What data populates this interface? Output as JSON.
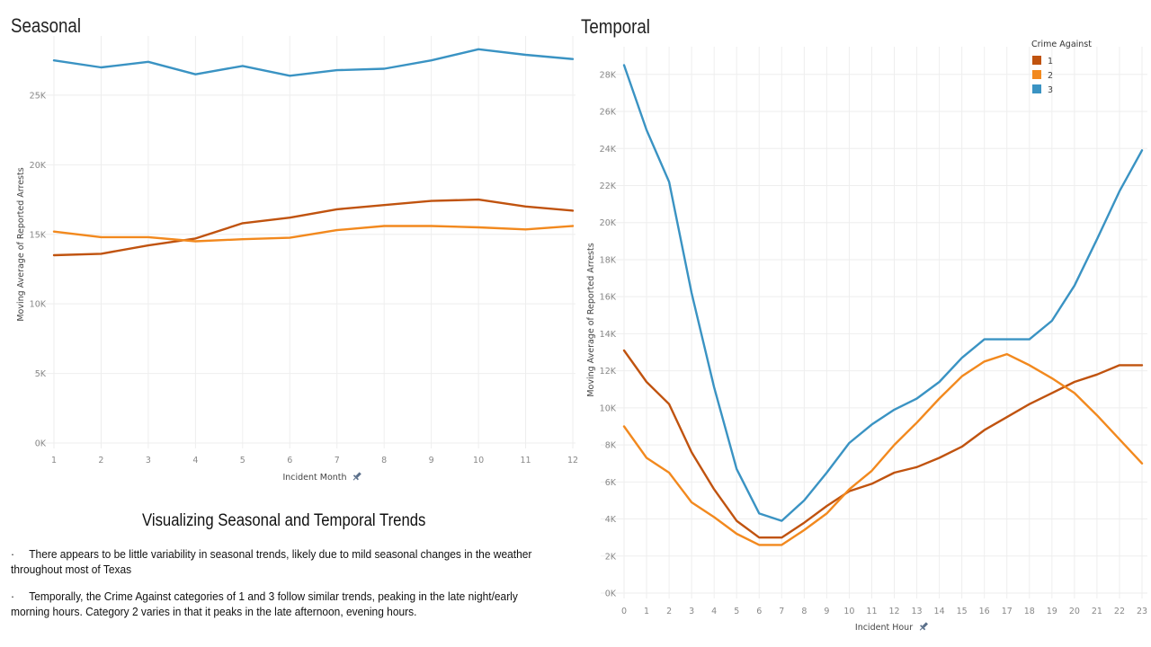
{
  "seasonal_title": "Seasonal",
  "temporal_title": "Temporal",
  "summary": {
    "heading": "Visualizing Seasonal and Temporal Trends",
    "bullets": [
      "There appears to be little variability in seasonal trends, likely due to mild seasonal changes in the weather throughout most of Texas",
      "Temporally, the Crime Against categories of 1 and 3 follow similar trends, peaking in the late night/early morning hours. Category 2 varies in that it peaks in the late afternoon, evening hours."
    ],
    "bullet_mark": "·"
  },
  "colors": {
    "1": "#c0530f",
    "2": "#f2891e",
    "3": "#3a93c3",
    "grid": "#eeeeee"
  },
  "pin_icon": "pin-icon",
  "chart_data": [
    {
      "type": "line",
      "title": "Seasonal",
      "xlabel": "Incident Month",
      "ylabel": "Moving Average of Reported Arrests",
      "x": [
        1,
        2,
        3,
        4,
        5,
        6,
        7,
        8,
        9,
        10,
        11,
        12
      ],
      "ylim": [
        0,
        29000
      ],
      "yticks": [
        {
          "v": 0,
          "label": "0K"
        },
        {
          "v": 5000,
          "label": "5K"
        },
        {
          "v": 10000,
          "label": "10K"
        },
        {
          "v": 15000,
          "label": "15K"
        },
        {
          "v": 20000,
          "label": "20K"
        },
        {
          "v": 25000,
          "label": "25K"
        }
      ],
      "series": [
        {
          "name": "1",
          "values": [
            13500,
            13600,
            14200,
            14700,
            15800,
            16200,
            16800,
            17100,
            17400,
            17500,
            17000,
            16700
          ]
        },
        {
          "name": "2",
          "values": [
            15200,
            14800,
            14800,
            14500,
            14650,
            14750,
            15300,
            15600,
            15600,
            15500,
            15350,
            15600
          ]
        },
        {
          "name": "3",
          "values": [
            27500,
            27000,
            27400,
            26500,
            27100,
            26400,
            26800,
            26900,
            27500,
            28300,
            27900,
            27600
          ]
        }
      ]
    },
    {
      "type": "line",
      "title": "Temporal",
      "xlabel": "Incident Hour",
      "ylabel": "Moving Average of Reported Arrests",
      "x": [
        0,
        1,
        2,
        3,
        4,
        5,
        6,
        7,
        8,
        9,
        10,
        11,
        12,
        13,
        14,
        15,
        16,
        17,
        18,
        19,
        20,
        21,
        22,
        23
      ],
      "ylim": [
        0,
        29300
      ],
      "yticks": [
        {
          "v": 0,
          "label": "0K"
        },
        {
          "v": 2000,
          "label": "2K"
        },
        {
          "v": 4000,
          "label": "4K"
        },
        {
          "v": 6000,
          "label": "6K"
        },
        {
          "v": 8000,
          "label": "8K"
        },
        {
          "v": 10000,
          "label": "10K"
        },
        {
          "v": 12000,
          "label": "12K"
        },
        {
          "v": 14000,
          "label": "14K"
        },
        {
          "v": 16000,
          "label": "16K"
        },
        {
          "v": 18000,
          "label": "18K"
        },
        {
          "v": 20000,
          "label": "20K"
        },
        {
          "v": 22000,
          "label": "22K"
        },
        {
          "v": 24000,
          "label": "24K"
        },
        {
          "v": 26000,
          "label": "26K"
        },
        {
          "v": 28000,
          "label": "28K"
        }
      ],
      "legend": {
        "title": "Crime Against",
        "position": "top-right",
        "items": [
          "1",
          "2",
          "3"
        ]
      },
      "series": [
        {
          "name": "1",
          "values": [
            13100,
            11400,
            10200,
            7600,
            5600,
            3900,
            3000,
            3000,
            3800,
            4700,
            5500,
            5900,
            6500,
            6800,
            7300,
            7900,
            8800,
            9500,
            10200,
            10800,
            11400,
            11800,
            12300,
            12300
          ]
        },
        {
          "name": "2",
          "values": [
            9000,
            7300,
            6500,
            4900,
            4100,
            3200,
            2600,
            2600,
            3400,
            4300,
            5600,
            6600,
            8000,
            9200,
            10500,
            11700,
            12500,
            12900,
            12300,
            11600,
            10800,
            9600,
            8300,
            7000
          ]
        },
        {
          "name": "3",
          "values": [
            28500,
            25000,
            22200,
            16200,
            11100,
            6700,
            4300,
            3900,
            5000,
            6500,
            8100,
            9100,
            9900,
            10500,
            11400,
            12700,
            13700,
            13700,
            13700,
            14700,
            16600,
            19100,
            21700,
            23900
          ]
        }
      ]
    }
  ]
}
